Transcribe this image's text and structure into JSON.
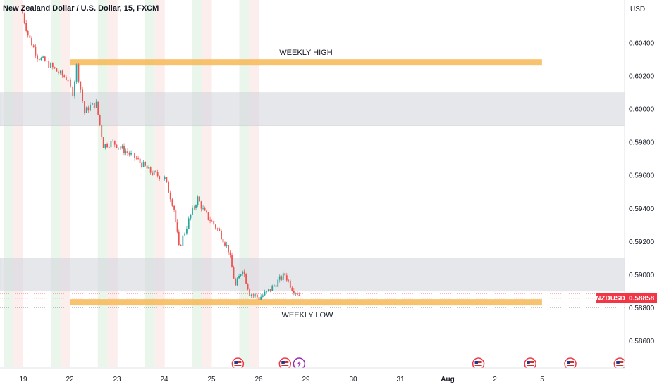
{
  "title": "New Zealand Dollar / U.S. Dollar, 15, FXCM",
  "currency": "USD",
  "symbol": "NZDUSD",
  "last_price_label": "0.58858",
  "colors": {
    "up": "#26a69a",
    "down": "#ef5350",
    "zone_orange": "#f7b955",
    "zone_gray": "#d1d4dc",
    "last_price": "#f23645"
  },
  "chart_data": {
    "type": "candlestick",
    "symbol": "NZDUSD",
    "interval": "15",
    "x_ticks": [
      "19",
      "22",
      "23",
      "24",
      "25",
      "26",
      "29",
      "30",
      "31",
      "Aug",
      "2",
      "5"
    ],
    "y_ticks": [
      "0.60400",
      "0.60200",
      "0.60000",
      "0.59800",
      "0.59600",
      "0.59400",
      "0.59200",
      "0.59000",
      "0.58800",
      "0.58600"
    ],
    "ylim": [
      0.5844,
      0.6066
    ],
    "last_price": 0.58858,
    "close_path": [
      {
        "t": 18.95,
        "p": 0.6062
      },
      {
        "t": 19.1,
        "p": 0.6045
      },
      {
        "t": 19.3,
        "p": 0.6032
      },
      {
        "t": 19.5,
        "p": 0.6028
      },
      {
        "t": 19.75,
        "p": 0.6022
      },
      {
        "t": 19.95,
        "p": 0.6018
      },
      {
        "t": 22.05,
        "p": 0.601
      },
      {
        "t": 22.13,
        "p": 0.6026
      },
      {
        "t": 22.3,
        "p": 0.5998
      },
      {
        "t": 22.42,
        "p": 0.6002
      },
      {
        "t": 22.55,
        "p": 0.6003
      },
      {
        "t": 22.7,
        "p": 0.5978
      },
      {
        "t": 22.9,
        "p": 0.598
      },
      {
        "t": 23.1,
        "p": 0.5976
      },
      {
        "t": 23.4,
        "p": 0.597
      },
      {
        "t": 23.7,
        "p": 0.5962
      },
      {
        "t": 24.0,
        "p": 0.5958
      },
      {
        "t": 24.2,
        "p": 0.594
      },
      {
        "t": 24.3,
        "p": 0.5916
      },
      {
        "t": 24.55,
        "p": 0.5936
      },
      {
        "t": 24.7,
        "p": 0.5946
      },
      {
        "t": 24.85,
        "p": 0.5937
      },
      {
        "t": 25.0,
        "p": 0.5932
      },
      {
        "t": 25.2,
        "p": 0.5924
      },
      {
        "t": 25.35,
        "p": 0.5915
      },
      {
        "t": 25.5,
        "p": 0.5893
      },
      {
        "t": 25.65,
        "p": 0.5904
      },
      {
        "t": 25.8,
        "p": 0.5889
      },
      {
        "t": 26.0,
        "p": 0.5886
      },
      {
        "t": 26.2,
        "p": 0.589
      },
      {
        "t": 26.4,
        "p": 0.5896
      },
      {
        "t": 26.55,
        "p": 0.59
      },
      {
        "t": 26.7,
        "p": 0.5892
      },
      {
        "t": 26.85,
        "p": 0.5888
      }
    ],
    "zones": [
      {
        "label": "WEEKLY HIGH",
        "low": 0.60265,
        "high": 0.60285,
        "from": 22.0,
        "to": 32.0,
        "color": "orange"
      },
      {
        "label": "",
        "low": 0.599,
        "high": 0.601,
        "from": 18.5,
        "to": 32.3,
        "color": "gray"
      },
      {
        "label": "",
        "low": 0.589,
        "high": 0.591,
        "from": 18.5,
        "to": 32.3,
        "color": "gray"
      },
      {
        "label": "WEEKLY LOW",
        "low": 0.58815,
        "high": 0.58835,
        "from": 22.0,
        "to": 32.0,
        "color": "orange"
      }
    ],
    "session_bands": [
      19.0,
      22.0,
      23.0,
      24.0,
      25.0,
      26.0
    ],
    "event_icons": [
      {
        "t": 25.55,
        "type": "us-flag"
      },
      {
        "t": 26.55,
        "type": "us-flag"
      },
      {
        "t": 26.85,
        "type": "lightning"
      },
      {
        "t": 30.65,
        "type": "us-flag"
      },
      {
        "t": 31.75,
        "type": "us-flag"
      },
      {
        "t": 32.6,
        "type": "us-flag"
      },
      {
        "t": 33.65,
        "type": "us-flag"
      }
    ]
  }
}
